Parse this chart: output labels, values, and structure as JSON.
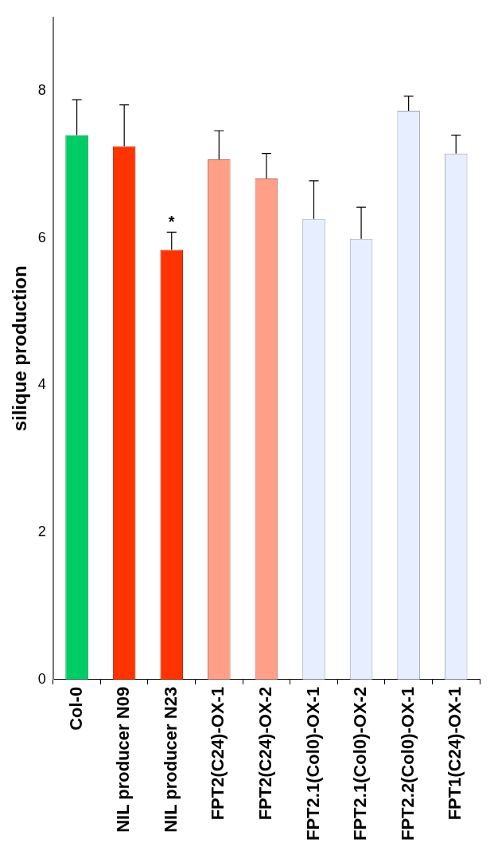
{
  "chart_data": {
    "type": "bar",
    "ylabel": "silique production",
    "categories": [
      "Col-0",
      "NIL producer N09",
      "NIL producer N23",
      "FPT2(C24)-OX-1",
      "FPT2(C24)-OX-2",
      "FPT2.1(Col0)-OX-1",
      "FPT2.1(Col0)-OX-2",
      "FPT2.2(Col0)-OX-1",
      "FPT1(C24)-OX-1"
    ],
    "values": [
      7.4,
      7.25,
      5.84,
      7.07,
      6.81,
      6.26,
      5.99,
      7.73,
      7.15
    ],
    "errors": [
      [
        7.4,
        7.88
      ],
      [
        7.25,
        7.81
      ],
      [
        5.84,
        6.08
      ],
      [
        7.07,
        7.46
      ],
      [
        6.81,
        7.15
      ],
      [
        6.26,
        6.78
      ],
      [
        5.99,
        6.42
      ],
      [
        7.73,
        7.93
      ],
      [
        7.15,
        7.4
      ]
    ],
    "colors": [
      "#00cc66",
      "#ff3300",
      "#ff3300",
      "#ff9f87",
      "#ff9f87",
      "#e6eeff",
      "#e6eeff",
      "#e6eeff",
      "#e6eeff"
    ],
    "ylim": [
      0,
      9
    ],
    "yticks": [
      0,
      2,
      4,
      6,
      8
    ],
    "grid": false,
    "annotations": [
      {
        "text": "*",
        "x": "NIL producer N23",
        "y": 6.08
      }
    ]
  }
}
